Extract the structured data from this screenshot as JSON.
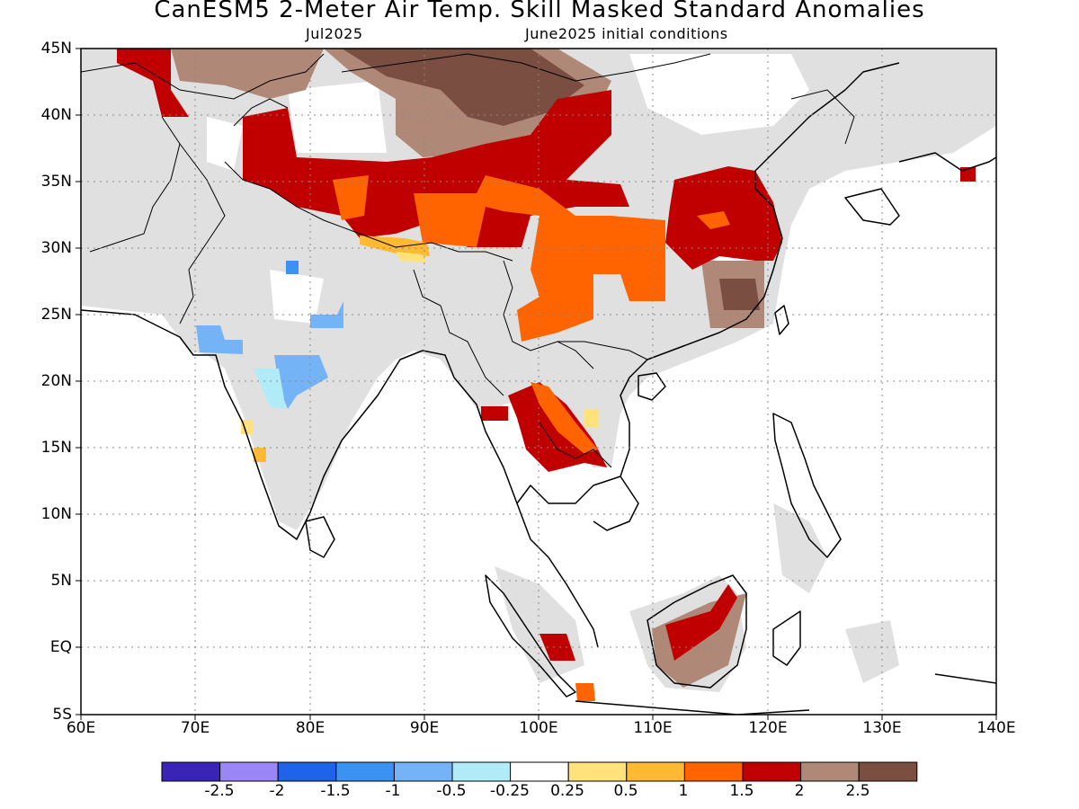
{
  "header": {
    "title": "CanESM5 2-Meter Air Temp. Skill Masked Standard Anomalies",
    "target_month": "Jul2025",
    "initial_conditions": "June2025 initial conditions"
  },
  "map": {
    "extent": {
      "lon": [
        60,
        140
      ],
      "lat": [
        -5,
        45
      ]
    },
    "lat_ticks": [
      "45N",
      "40N",
      "35N",
      "30N",
      "25N",
      "20N",
      "15N",
      "10N",
      "5N",
      "EQ",
      "5S"
    ],
    "lon_ticks": [
      "60E",
      "70E",
      "80E",
      "90E",
      "100E",
      "110E",
      "120E",
      "130E",
      "140E"
    ],
    "grid": "dotted",
    "mask_color": "#e0e0e0"
  },
  "colorbar": {
    "colors": [
      "#3a24b8",
      "#9a86f4",
      "#1f64e8",
      "#3b92f2",
      "#74b4f6",
      "#b0ecf8",
      "#ffffff",
      "#ffe27a",
      "#ffb932",
      "#ff6400",
      "#c00000",
      "#b08878",
      "#7a4e40"
    ],
    "labels": [
      "-2.5",
      "-2",
      "-1.5",
      "-1",
      "-0.5",
      "-0.25",
      "0.25",
      "0.5",
      "1",
      "1.5",
      "2",
      "2.5"
    ]
  }
}
